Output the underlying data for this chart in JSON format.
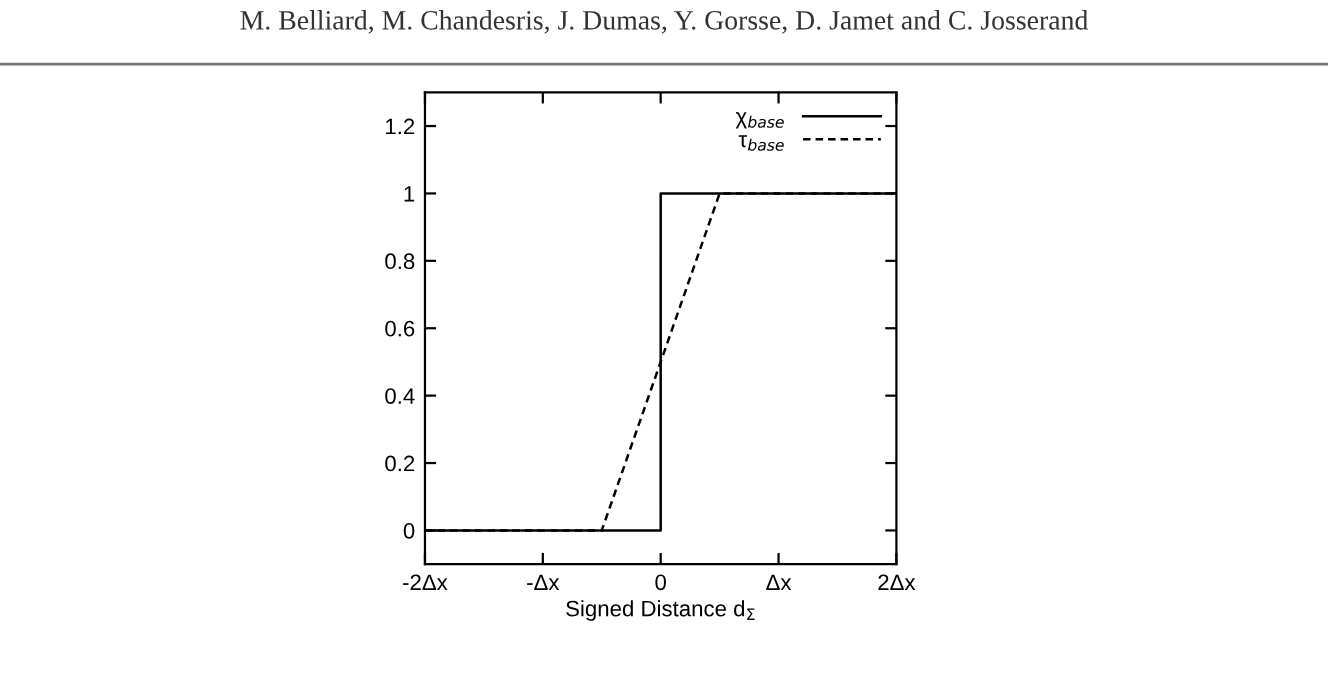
{
  "chart_data": {
    "type": "line",
    "xlabel": "Signed Distance d$_{Σ}$",
    "annotations": [
      "M. Belliard, M. Chandesris, J. Dumas, Y. Gorsse, D. Jamet and C. Josserand"
    ],
    "series": [
      {
        "name": "χ$_{base}$",
        "color": "#000000",
        "line_style": "solid",
        "x": [
          -2,
          0,
          0,
          2
        ],
        "values": [
          0,
          0,
          1,
          1
        ]
      },
      {
        "name": "τ$_{base}$",
        "color": "#000000",
        "line_style": "dashed",
        "x": [
          -2,
          -0.5,
          0.5,
          2
        ],
        "values": [
          0,
          0,
          1,
          1
        ]
      }
    ],
    "xlim": [
      -2,
      2
    ],
    "xticks": [
      {
        "value": -2,
        "label": "-2Δx"
      },
      {
        "value": -1,
        "label": "-Δx"
      },
      0,
      {
        "value": 1,
        "label": "Δx"
      },
      {
        "value": 2,
        "label": "2Δx"
      }
    ],
    "ylim": [
      -0.1,
      1.3
    ],
    "yticks": [
      0,
      0.2,
      0.4,
      0.6,
      0.8,
      1,
      1.2
    ],
    "grid": false,
    "legend": "top right",
    "marker": "none"
  }
}
